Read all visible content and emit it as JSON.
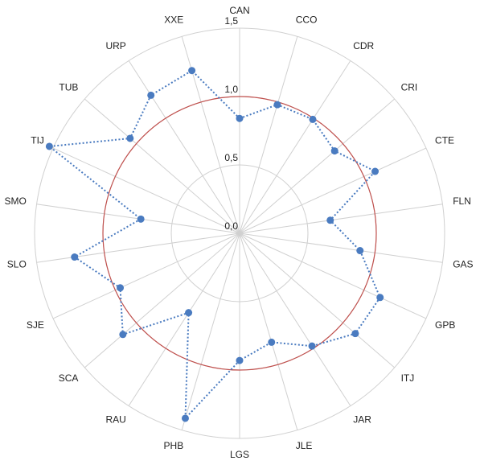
{
  "chart_data": {
    "type": "radar",
    "categories": [
      "CAN",
      "CCO",
      "CDR",
      "CRI",
      "CTE",
      "FLN",
      "GAS",
      "GPB",
      "ITJ",
      "JAR",
      "JLE",
      "LGS",
      "PHB",
      "RAU",
      "SCA",
      "SJE",
      "SLO",
      "SMO",
      "TIJ",
      "TUB",
      "URP",
      "XXE"
    ],
    "values": [
      0.84,
      0.98,
      0.99,
      0.92,
      1.09,
      0.67,
      0.89,
      1.13,
      1.12,
      0.98,
      0.83,
      0.93,
      1.41,
      0.69,
      1.13,
      0.96,
      1.22,
      0.73,
      1.53,
      1.06,
      1.2,
      1.24
    ],
    "color": "#4a7bc0",
    "reference": 1.0,
    "reference_color": "#c0504d",
    "ylim": [
      0,
      1.5
    ],
    "yticks": [
      {
        "value": 0,
        "label": "0,0"
      },
      {
        "value": 0.5,
        "label": "0,5"
      },
      {
        "value": 1.0,
        "label": "1,0"
      },
      {
        "value": 1.5,
        "label": "1,5"
      }
    ],
    "grid": true
  }
}
